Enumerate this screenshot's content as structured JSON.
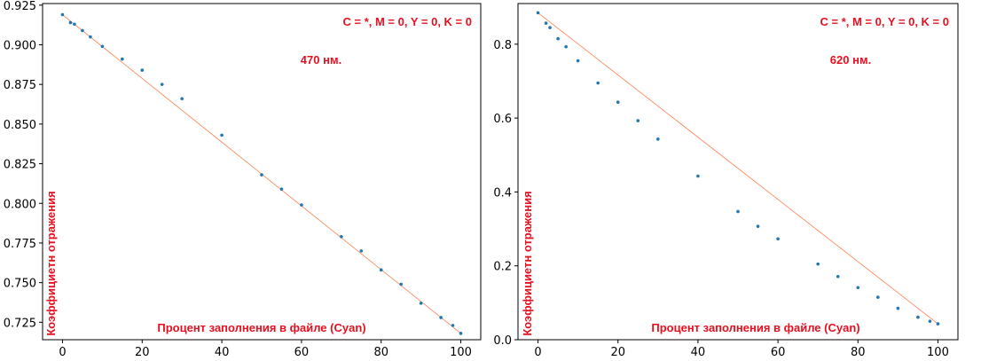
{
  "colors": {
    "points": "#1f77b4",
    "line": "#ff7f50",
    "annotation": "#e8101f",
    "axis": "#000000"
  },
  "chart_data": [
    {
      "type": "scatter",
      "title": "",
      "annotation_formula": "C = *, M = 0, Y = 0, K = 0",
      "annotation_wavelength": "470 нм.",
      "xlabel": "Процент заполнения в файле (Cyan)",
      "ylabel": "Коэффициетн отражения",
      "xlim": [
        -5,
        105
      ],
      "ylim": [
        0.714,
        0.926
      ],
      "xticks": [
        0,
        20,
        40,
        60,
        80,
        100
      ],
      "xtick_labels": [
        "0",
        "20",
        "40",
        "60",
        "80",
        "100"
      ],
      "yticks": [
        0.725,
        0.75,
        0.775,
        0.8,
        0.825,
        0.85,
        0.875,
        0.9,
        0.925
      ],
      "ytick_labels": [
        "0.725",
        "0.750",
        "0.775",
        "0.800",
        "0.825",
        "0.850",
        "0.875",
        "0.900",
        "0.925"
      ],
      "x": [
        0,
        2,
        3,
        5,
        7,
        10,
        15,
        20,
        25,
        30,
        40,
        50,
        55,
        60,
        70,
        75,
        80,
        85,
        90,
        95,
        98,
        100
      ],
      "y": [
        0.919,
        0.914,
        0.913,
        0.909,
        0.905,
        0.899,
        0.891,
        0.884,
        0.875,
        0.866,
        0.843,
        0.818,
        0.809,
        0.799,
        0.779,
        0.77,
        0.758,
        0.749,
        0.737,
        0.728,
        0.723,
        0.718
      ],
      "fit_line": {
        "x": [
          0,
          100
        ],
        "y": [
          0.919,
          0.718
        ]
      }
    },
    {
      "type": "scatter",
      "title": "",
      "annotation_formula": "C = *, M = 0, Y = 0, K = 0",
      "annotation_wavelength": "620 нм.",
      "xlabel": "Процент заполнения в файле (Cyan)",
      "ylabel": "Коэффициетн отражения",
      "xlim": [
        -5,
        105
      ],
      "ylim": [
        0.0,
        0.91
      ],
      "xticks": [
        0,
        20,
        40,
        60,
        80,
        100
      ],
      "xtick_labels": [
        "0",
        "20",
        "40",
        "60",
        "80",
        "100"
      ],
      "yticks": [
        0.0,
        0.2,
        0.4,
        0.6,
        0.8
      ],
      "ytick_labels": [
        "0.0",
        "0.2",
        "0.4",
        "0.6",
        "0.8"
      ],
      "x": [
        0,
        2,
        3,
        5,
        7,
        10,
        15,
        20,
        25,
        30,
        40,
        50,
        55,
        60,
        70,
        75,
        80,
        85,
        90,
        95,
        98,
        100
      ],
      "y": [
        0.885,
        0.857,
        0.845,
        0.815,
        0.793,
        0.755,
        0.695,
        0.643,
        0.593,
        0.543,
        0.443,
        0.347,
        0.307,
        0.273,
        0.205,
        0.171,
        0.141,
        0.115,
        0.085,
        0.061,
        0.05,
        0.043
      ],
      "fit_line": {
        "x": [
          0,
          100
        ],
        "y": [
          0.885,
          0.043
        ]
      }
    }
  ]
}
